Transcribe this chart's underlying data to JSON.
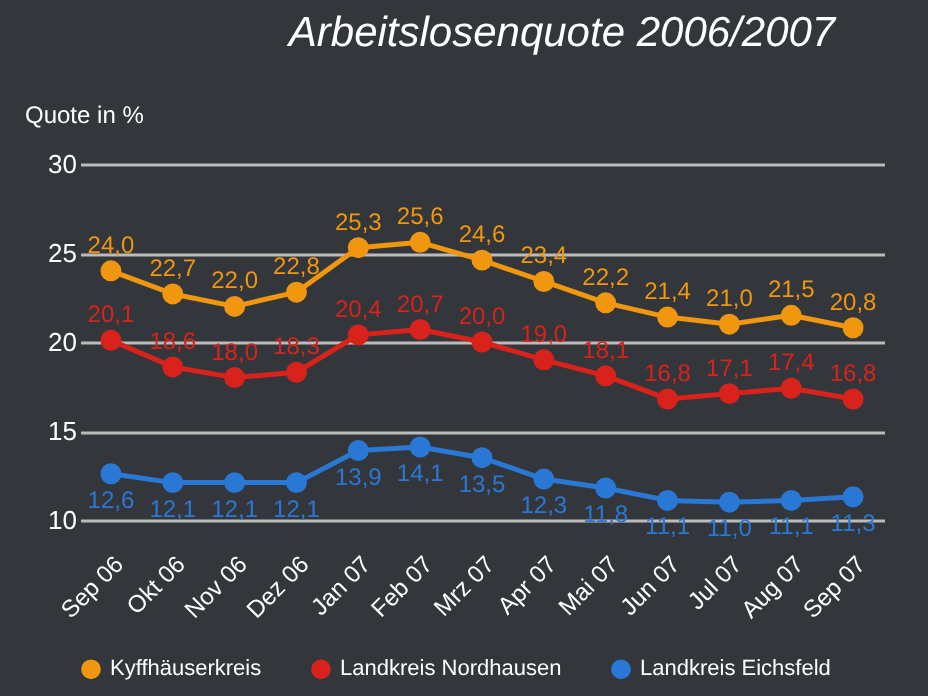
{
  "chart_data": {
    "type": "line",
    "title": "Arbeitslosenquote 2006/2007",
    "ylabel": "Quote in %",
    "categories": [
      "Sep 06",
      "Okt 06",
      "Nov 06",
      "Dez 06",
      "Jan 07",
      "Feb 07",
      "Mrz 07",
      "Apr 07",
      "Mai 07",
      "Jun 07",
      "Jul 07",
      "Aug 07",
      "Sep 07"
    ],
    "series": [
      {
        "name": "Kyffhäuserkreis",
        "color": "#f0960f",
        "values": [
          24.0,
          22.7,
          22.0,
          22.8,
          25.3,
          25.6,
          24.6,
          23.4,
          22.2,
          21.4,
          21.0,
          21.5,
          20.8
        ],
        "value_labels": [
          "24,0",
          "22,7",
          "22,0",
          "22,8",
          "25,3",
          "25,6",
          "24,6",
          "23,4",
          "22,2",
          "21,4",
          "21,0",
          "21,5",
          "20,8"
        ]
      },
      {
        "name": "Landkreis Nordhausen",
        "color": "#d9221c",
        "values": [
          20.1,
          18.6,
          18.0,
          18.3,
          20.4,
          20.7,
          20.0,
          19.0,
          18.1,
          16.8,
          17.1,
          17.4,
          16.8
        ],
        "value_labels": [
          "20,1",
          "18,6",
          "18,0",
          "18,3",
          "20,4",
          "20,7",
          "20,0",
          "19,0",
          "18,1",
          "16,8",
          "17,1",
          "17,4",
          "16,8"
        ]
      },
      {
        "name": "Landkreis Eichsfeld",
        "color": "#2a78d6",
        "values": [
          12.6,
          12.1,
          12.1,
          12.1,
          13.9,
          14.1,
          13.5,
          12.3,
          11.8,
          11.1,
          11.0,
          11.1,
          11.3
        ],
        "value_labels": [
          "12,6",
          "12,1",
          "12,1",
          "12,1",
          "13,9",
          "14,1",
          "13,5",
          "12,3",
          "11,8",
          "11,1",
          "11,0",
          "11,1",
          "11,3"
        ]
      }
    ],
    "ylim": [
      10,
      30
    ],
    "yticks": [
      10,
      15,
      20,
      25,
      30
    ],
    "grid": "y",
    "legend": "bottom",
    "marker": "circle"
  }
}
